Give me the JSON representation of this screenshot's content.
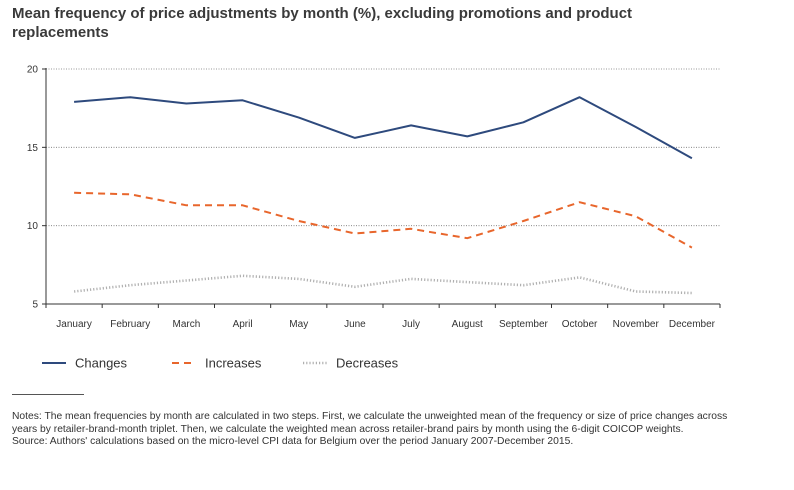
{
  "title": "Mean frequency of price adjustments by month (%), excluding promotions and product replacements",
  "chart_data": {
    "type": "line",
    "categories": [
      "January",
      "February",
      "March",
      "April",
      "May",
      "June",
      "July",
      "August",
      "September",
      "October",
      "November",
      "December"
    ],
    "ylim": [
      5,
      20
    ],
    "yticks": [
      "5",
      "10",
      "15",
      "20"
    ],
    "grid": true,
    "legend_position": "bottom",
    "series": [
      {
        "name": "Changes",
        "color": "#2e4a7d",
        "style": "solid",
        "values": [
          17.9,
          18.2,
          17.8,
          18.0,
          16.9,
          15.6,
          16.4,
          15.7,
          16.6,
          18.2,
          16.3,
          14.3
        ]
      },
      {
        "name": "Increases",
        "color": "#e8662c",
        "style": "dashed",
        "values": [
          12.1,
          12.0,
          11.3,
          11.3,
          10.3,
          9.5,
          9.8,
          9.2,
          10.3,
          11.5,
          10.6,
          8.6
        ]
      },
      {
        "name": "Decreases",
        "color": "#b0b0b0",
        "style": "dotted",
        "values": [
          5.8,
          6.2,
          6.5,
          6.8,
          6.6,
          6.1,
          6.6,
          6.4,
          6.2,
          6.7,
          5.8,
          5.7
        ]
      }
    ]
  },
  "notes_label": "Notes:",
  "notes_text": "The mean frequencies by month are calculated in two steps. First, we calculate the unweighted mean of the frequency or size of price changes across years by retailer-brand-month triplet. Then, we calculate the weighted mean across retailer-brand pairs by month using the 6-digit COICOP weights.",
  "source_label": "Source:",
  "source_text": "Authors' calculations based on the micro-level CPI data for Belgium over the period January 2007-December 2015."
}
